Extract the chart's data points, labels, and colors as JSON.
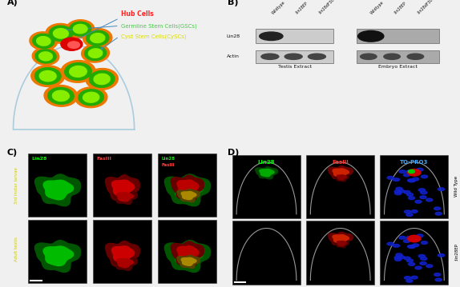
{
  "panel_labels": [
    "A)",
    "B)",
    "C)",
    "D)"
  ],
  "panel_label_fontsize": 8,
  "background_color": "#f0f0f0",
  "fig_width": 5.74,
  "fig_height": 3.59,
  "panel_A": {
    "hub_label": "Hub Cells",
    "hub_color": "#ff2222",
    "gsc_label": "Germline Stem Cells(GSCs)",
    "gsc_color": "#44cc44",
    "cysc_label": "Cyst Stem Cells(CySCs)",
    "cysc_color": "#dddd00",
    "orange_color": "#ee7700",
    "green_dark": "#22aa00",
    "green_light": "#88ee00",
    "arrow_color": "#4488bb"
  },
  "panel_B": {
    "lanes": [
      "Wildtype",
      ":lin28EP",
      ":lin28dF30"
    ],
    "row_labels": [
      "Lin28",
      "Actin"
    ],
    "label_testis": "Testis Extract",
    "label_embryo": "Embryo Extract"
  },
  "panel_C": {
    "row1_label": "3rd Instar larvae",
    "row2_label": "Adult testis",
    "col_label_colors": [
      "#00ff00",
      "#ff4444",
      "#ffff00"
    ]
  },
  "panel_D": {
    "col_labels": [
      "Lin28",
      "FasIII",
      "TO-PRO3"
    ],
    "col_label_colors": [
      "#00ff00",
      "#ff3333",
      "#44aaff"
    ],
    "row_labels": [
      "Wild Type",
      ":lin28EP"
    ]
  }
}
